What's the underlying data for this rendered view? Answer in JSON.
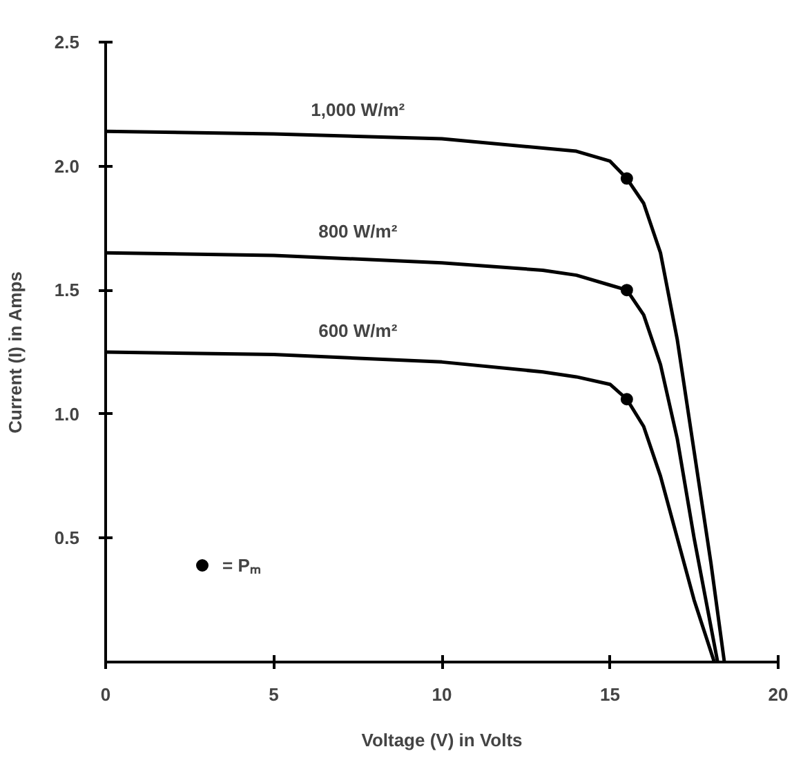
{
  "chart_data": {
    "type": "line",
    "xlabel": "Voltage (V) in Volts",
    "ylabel": "Current (I) in Amps",
    "xlim": [
      0,
      20
    ],
    "xticks": [
      0,
      5,
      10,
      15,
      20
    ],
    "ylim": [
      0,
      2.5
    ],
    "yticks": [
      0.5,
      {
        "value": 1,
        "label": "1.0"
      },
      1.5,
      {
        "value": 2,
        "label": "2.0"
      },
      2.5
    ],
    "grid": false,
    "legend": "bottom left",
    "marker": "none",
    "line_style": "solid",
    "series": [
      {
        "name": "1,000 W/m²",
        "color": "#000000",
        "x": [
          0,
          5,
          10,
          14,
          15,
          15.5,
          16,
          16.5,
          17,
          17.5,
          18,
          18.4
        ],
        "values": [
          2.14,
          2.13,
          2.11,
          2.06,
          2.02,
          1.95,
          1.85,
          1.65,
          1.3,
          0.85,
          0.4,
          0
        ]
      },
      {
        "name": "800 W/m²",
        "color": "#000000",
        "x": [
          0,
          5,
          10,
          13,
          14,
          15,
          15.5,
          16,
          16.5,
          17,
          17.5,
          18.2
        ],
        "values": [
          1.65,
          1.64,
          1.61,
          1.58,
          1.56,
          1.52,
          1.5,
          1.4,
          1.2,
          0.9,
          0.5,
          0
        ]
      },
      {
        "name": "600 W/m²",
        "color": "#000000",
        "x": [
          0,
          5,
          10,
          13,
          14,
          15,
          15.5,
          16,
          16.5,
          17,
          17.5,
          18.1
        ],
        "values": [
          1.25,
          1.24,
          1.21,
          1.17,
          1.15,
          1.12,
          1.06,
          0.95,
          0.75,
          0.5,
          0.25,
          0
        ]
      },
      {
        "name": "= Pₘ",
        "type": "scatter",
        "marker": "circle",
        "color": "#000000",
        "x": [
          15.5,
          15.5,
          15.5
        ],
        "values": [
          1.95,
          1.5,
          1.06
        ]
      }
    ]
  }
}
